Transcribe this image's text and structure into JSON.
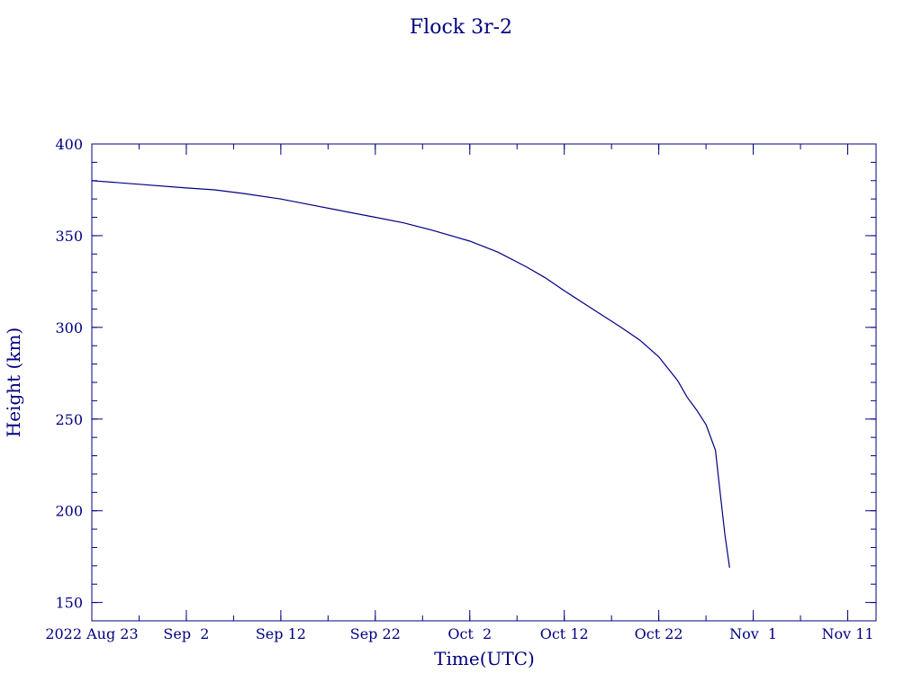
{
  "chart_data": {
    "type": "line",
    "title": "Flock 3r-2",
    "xlabel": "Time(UTC)",
    "ylabel": "Height (km)",
    "colors": {
      "axis": "#000080",
      "line": "#000080"
    },
    "x_axis": {
      "kind": "date",
      "range": [
        "2022-08-23",
        "2022-11-14"
      ],
      "major_ticks": [
        {
          "date": "2022-08-23",
          "label": "2022 Aug 23"
        },
        {
          "date": "2022-09-02",
          "label": "Sep  2"
        },
        {
          "date": "2022-09-12",
          "label": "Sep 12"
        },
        {
          "date": "2022-09-22",
          "label": "Sep 22"
        },
        {
          "date": "2022-10-02",
          "label": "Oct  2"
        },
        {
          "date": "2022-10-12",
          "label": "Oct 12"
        },
        {
          "date": "2022-10-22",
          "label": "Oct 22"
        },
        {
          "date": "2022-11-01",
          "label": "Nov  1"
        },
        {
          "date": "2022-11-11",
          "label": "Nov 11"
        }
      ],
      "minor_tick_step_days": 5
    },
    "y_axis": {
      "range": [
        140,
        400
      ],
      "major_ticks": [
        150,
        200,
        250,
        300,
        350,
        400
      ],
      "minor_tick_step": 10
    },
    "series": [
      {
        "points": [
          [
            "2022-08-23",
            380
          ],
          [
            "2022-08-28",
            378
          ],
          [
            "2022-09-02",
            376
          ],
          [
            "2022-09-05",
            375
          ],
          [
            "2022-09-08",
            373
          ],
          [
            "2022-09-12",
            370
          ],
          [
            "2022-09-15",
            367
          ],
          [
            "2022-09-18",
            364
          ],
          [
            "2022-09-22",
            360
          ],
          [
            "2022-09-25",
            357
          ],
          [
            "2022-09-28",
            353
          ],
          [
            "2022-10-02",
            347
          ],
          [
            "2022-10-05",
            341
          ],
          [
            "2022-10-08",
            333
          ],
          [
            "2022-10-10",
            327
          ],
          [
            "2022-10-12",
            320
          ],
          [
            "2022-10-15",
            310
          ],
          [
            "2022-10-18",
            300
          ],
          [
            "2022-10-20",
            293
          ],
          [
            "2022-10-22",
            284
          ],
          [
            "2022-10-24",
            271
          ],
          [
            "2022-10-25",
            262
          ],
          [
            "2022-10-26",
            255
          ],
          [
            "2022-10-27",
            247
          ],
          [
            "2022-10-28",
            233
          ],
          [
            "2022-10-28T12:00",
            210
          ],
          [
            "2022-10-29",
            187
          ],
          [
            "2022-10-29T12:00",
            169
          ]
        ]
      }
    ],
    "grid": false,
    "legend": "none"
  }
}
